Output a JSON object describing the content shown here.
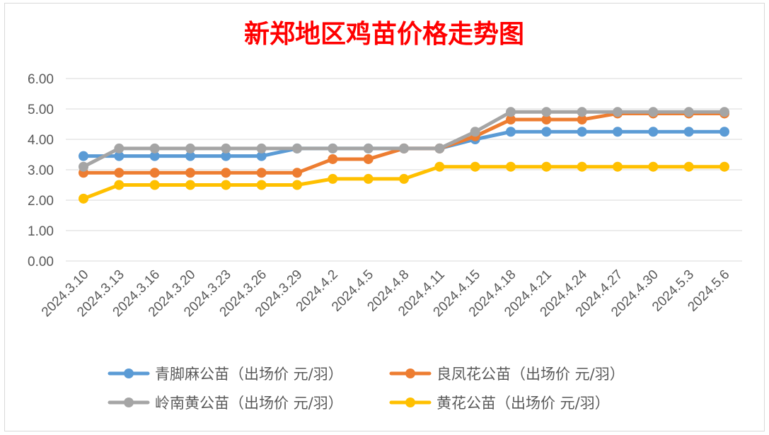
{
  "chart_data": {
    "type": "line",
    "title": "新郑地区鸡苗价格走势图",
    "xlabel": "",
    "ylabel": "",
    "ylim": [
      0,
      6
    ],
    "yticks": [
      "0.00",
      "1.00",
      "2.00",
      "3.00",
      "4.00",
      "5.00",
      "6.00"
    ],
    "grid": true,
    "legend_position": "bottom",
    "categories": [
      "2024.3.10",
      "2024.3.13",
      "2024.3.16",
      "2024.3.20",
      "2024.3.23",
      "2024.3.26",
      "2024.3.29",
      "2024.4.2",
      "2024.4.5",
      "2024.4.8",
      "2024.4.11",
      "2024.4.15",
      "2024.4.18",
      "2024.4.21",
      "2024.4.24",
      "2024.4.27",
      "2024.4.30",
      "2024.5.3",
      "2024.5.6"
    ],
    "series": [
      {
        "name": "青脚麻公苗（出场价 元/羽）",
        "color": "#5b9bd5",
        "values": [
          3.45,
          3.45,
          3.45,
          3.45,
          3.45,
          3.45,
          3.7,
          3.7,
          3.7,
          3.7,
          3.7,
          4.0,
          4.25,
          4.25,
          4.25,
          4.25,
          4.25,
          4.25,
          4.25
        ]
      },
      {
        "name": "良凤花公苗（出场价 元/羽）",
        "color": "#ed7d31",
        "values": [
          2.9,
          2.9,
          2.9,
          2.9,
          2.9,
          2.9,
          2.9,
          3.35,
          3.35,
          3.7,
          3.7,
          4.1,
          4.65,
          4.65,
          4.65,
          4.85,
          4.85,
          4.85,
          4.85
        ]
      },
      {
        "name": "岭南黄公苗（出场价 元/羽）",
        "color": "#a5a5a5",
        "values": [
          3.1,
          3.7,
          3.7,
          3.7,
          3.7,
          3.7,
          3.7,
          3.7,
          3.7,
          3.7,
          3.7,
          4.25,
          4.9,
          4.9,
          4.9,
          4.9,
          4.9,
          4.9,
          4.9
        ]
      },
      {
        "name": "黄花公苗（出场价 元/羽）",
        "color": "#ffc000",
        "values": [
          2.05,
          2.5,
          2.5,
          2.5,
          2.5,
          2.5,
          2.5,
          2.7,
          2.7,
          2.7,
          3.1,
          3.1,
          3.1,
          3.1,
          3.1,
          3.1,
          3.1,
          3.1,
          3.1
        ]
      }
    ]
  }
}
